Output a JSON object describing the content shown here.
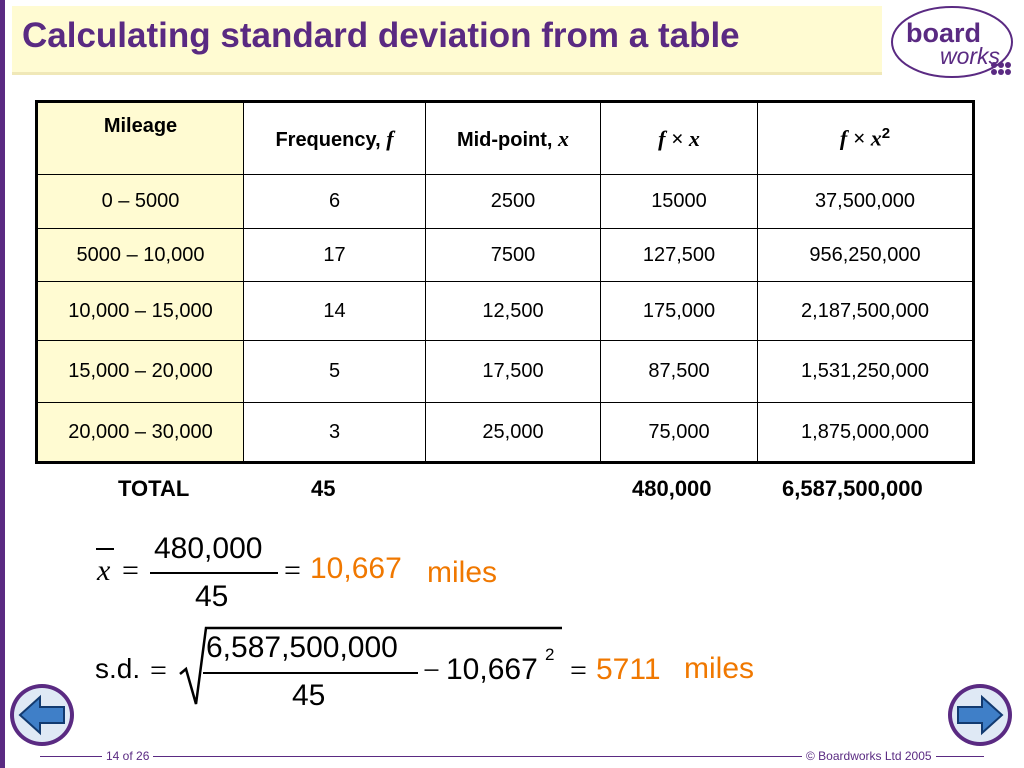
{
  "slide": {
    "title": "Calculating standard deviation from a table",
    "page_counter": "14 of 26",
    "copyright": "© Boardworks Ltd 2005"
  },
  "logo": {
    "line1": "board",
    "line2": "works"
  },
  "table": {
    "headers": {
      "mileage": "Mileage",
      "frequency": "Frequency, ",
      "frequency_var": "f",
      "midpoint": "Mid-point, ",
      "midpoint_var": "x",
      "fx": "f × x",
      "fx2": "f × x",
      "fx2_sup": "2"
    },
    "rows": [
      {
        "range": "0 – 5000",
        "f": "6",
        "x": "2500",
        "fx": "15000",
        "fx2": "37,500,000"
      },
      {
        "range": "5000 – 10,000",
        "f": "17",
        "x": "7500",
        "fx": "127,500",
        "fx2": "956,250,000"
      },
      {
        "range": "10,000 – 15,000",
        "f": "14",
        "x": "12,500",
        "fx": "175,000",
        "fx2": "2,187,500,000"
      },
      {
        "range": "15,000 – 20,000",
        "f": "5",
        "x": "17,500",
        "fx": "87,500",
        "fx2": "1,531,250,000"
      },
      {
        "range": "20,000 – 30,000",
        "f": "3",
        "x": "25,000",
        "fx": "75,000",
        "fx2": "1,875,000,000"
      }
    ]
  },
  "totals": {
    "label": "TOTAL",
    "f": "45",
    "fx": "480,000",
    "fx2": "6,587,500,000"
  },
  "mean_formula": {
    "symbol": "x",
    "numerator": "480,000",
    "denominator": "45",
    "result": "10,667",
    "unit": "miles"
  },
  "sd_formula": {
    "label": "s.d.",
    "numerator": "6,587,500,000",
    "denominator": "45",
    "minus_term": "10,667",
    "minus_term_sup": "2",
    "result": "5711",
    "unit": "miles"
  },
  "navigation": {
    "prev": "arrow-left-icon",
    "next": "arrow-right-icon"
  },
  "colors": {
    "brand_purple": "#5a2a82",
    "header_cream": "#fffbd2",
    "result_orange": "#f07800",
    "nav_blue": "#3f7fc8"
  }
}
